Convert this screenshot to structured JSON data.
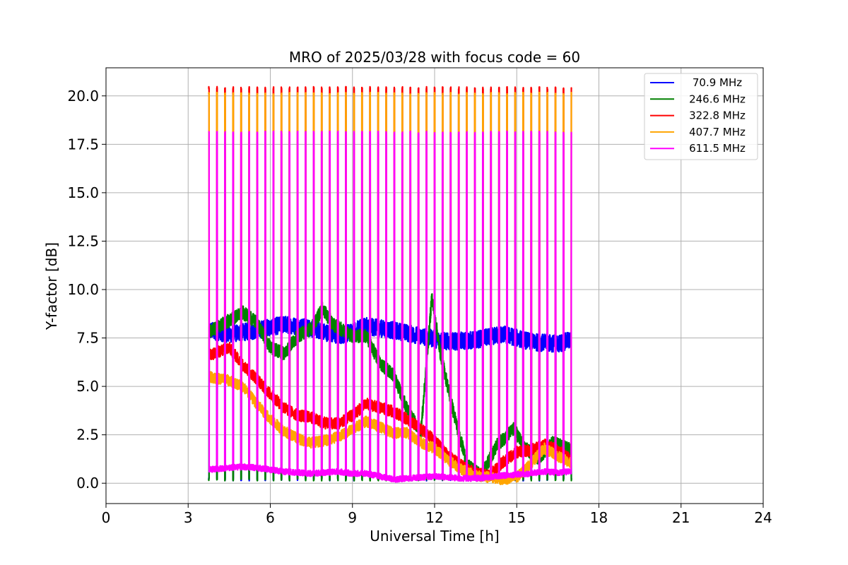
{
  "chart_data": {
    "type": "line",
    "title": "MRO of 2025/03/28 with focus code = 60",
    "xlabel": "Universal Time [h]",
    "ylabel": "Y-factor [dB]",
    "xlim": [
      0,
      24
    ],
    "ylim": [
      -1.05,
      21.45
    ],
    "xticks": [
      "0",
      "3",
      "6",
      "9",
      "12",
      "15",
      "18",
      "21",
      "24"
    ],
    "yticks": [
      "0.0",
      "2.5",
      "5.0",
      "7.5",
      "10.0",
      "12.5",
      "15.0",
      "17.5",
      "20.0"
    ],
    "grid": true,
    "legend_position": "top-right",
    "calibration_spikes": {
      "t_start": 3.75,
      "t_end": 17.0,
      "period_h": 0.2943,
      "peak_values": {
        "70.9 MHz": 0.2,
        "246.6 MHz": 0.2,
        "322.8 MHz": 20.4,
        "407.7 MHz": 20.1,
        "611.5 MHz": 18.1
      }
    },
    "series": [
      {
        "name": "70.9 MHz",
        "color": "#0000ff",
        "x": [
          3.75,
          4.5,
          5.5,
          6.5,
          7.5,
          8.5,
          9.5,
          10.5,
          11.5,
          12.5,
          13.5,
          14.5,
          15.5,
          16.5,
          17.0
        ],
        "y": [
          7.9,
          7.7,
          7.9,
          8.2,
          8.0,
          7.6,
          8.1,
          7.9,
          7.6,
          7.3,
          7.4,
          7.7,
          7.3,
          7.2,
          7.4
        ]
      },
      {
        "name": "246.6 MHz",
        "color": "#008000",
        "x": [
          3.75,
          4.5,
          5.0,
          5.5,
          6.0,
          6.5,
          7.0,
          7.5,
          7.9,
          8.3,
          9.0,
          9.5,
          10.0,
          10.5,
          11.0,
          11.5,
          11.9,
          12.2,
          12.7,
          13.2,
          13.7,
          14.3,
          14.9,
          15.3,
          15.8,
          16.3,
          17.0
        ],
        "y": [
          7.8,
          8.4,
          8.8,
          8.3,
          7.0,
          6.7,
          7.6,
          8.0,
          9.0,
          8.2,
          7.6,
          7.6,
          6.2,
          5.6,
          3.8,
          2.6,
          9.6,
          6.8,
          3.6,
          0.9,
          0.4,
          2.0,
          2.8,
          1.8,
          1.3,
          2.1,
          1.7
        ]
      },
      {
        "name": "322.8 MHz",
        "color": "#ff0000",
        "x": [
          3.75,
          4.5,
          5.0,
          5.5,
          6.0,
          6.5,
          7.0,
          7.5,
          8.0,
          8.5,
          9.0,
          9.5,
          10.0,
          10.5,
          11.0,
          11.5,
          12.0,
          12.5,
          13.0,
          13.5,
          14.0,
          14.5,
          15.0,
          15.5,
          16.0,
          16.5,
          17.0
        ],
        "y": [
          6.6,
          7.0,
          6.1,
          5.4,
          4.6,
          3.9,
          3.5,
          3.4,
          3.1,
          3.1,
          3.5,
          4.1,
          3.9,
          3.7,
          3.3,
          2.8,
          2.2,
          1.4,
          0.9,
          0.5,
          0.4,
          1.1,
          1.6,
          1.7,
          2.0,
          1.7,
          1.2
        ]
      },
      {
        "name": "407.7 MHz",
        "color": "#ffa500",
        "x": [
          3.75,
          4.5,
          5.0,
          5.5,
          6.0,
          6.5,
          7.0,
          7.5,
          8.0,
          8.5,
          9.0,
          9.5,
          10.0,
          10.5,
          11.0,
          11.5,
          12.0,
          12.5,
          13.0,
          13.5,
          14.0,
          14.5,
          15.0,
          15.5,
          16.0,
          16.5,
          17.0
        ],
        "y": [
          5.5,
          5.3,
          5.0,
          4.1,
          3.3,
          2.7,
          2.3,
          2.1,
          2.2,
          2.4,
          2.8,
          3.2,
          2.9,
          2.6,
          2.6,
          2.1,
          1.8,
          1.2,
          0.7,
          0.4,
          0.3,
          0.2,
          0.3,
          1.0,
          1.8,
          1.4,
          1.0
        ]
      },
      {
        "name": "611.5 MHz",
        "color": "#ff00ff",
        "x": [
          3.75,
          4.5,
          5.0,
          5.5,
          6.0,
          6.5,
          7.0,
          7.5,
          8.0,
          8.5,
          9.0,
          9.5,
          10.0,
          10.5,
          11.0,
          11.5,
          12.0,
          12.5,
          13.0,
          13.5,
          14.0,
          14.5,
          15.0,
          15.5,
          16.0,
          16.5,
          17.0
        ],
        "y": [
          0.7,
          0.8,
          0.85,
          0.8,
          0.7,
          0.6,
          0.55,
          0.5,
          0.55,
          0.6,
          0.5,
          0.5,
          0.35,
          0.2,
          0.25,
          0.3,
          0.35,
          0.3,
          0.25,
          0.25,
          0.3,
          0.4,
          0.45,
          0.5,
          0.6,
          0.55,
          0.6
        ]
      }
    ]
  }
}
